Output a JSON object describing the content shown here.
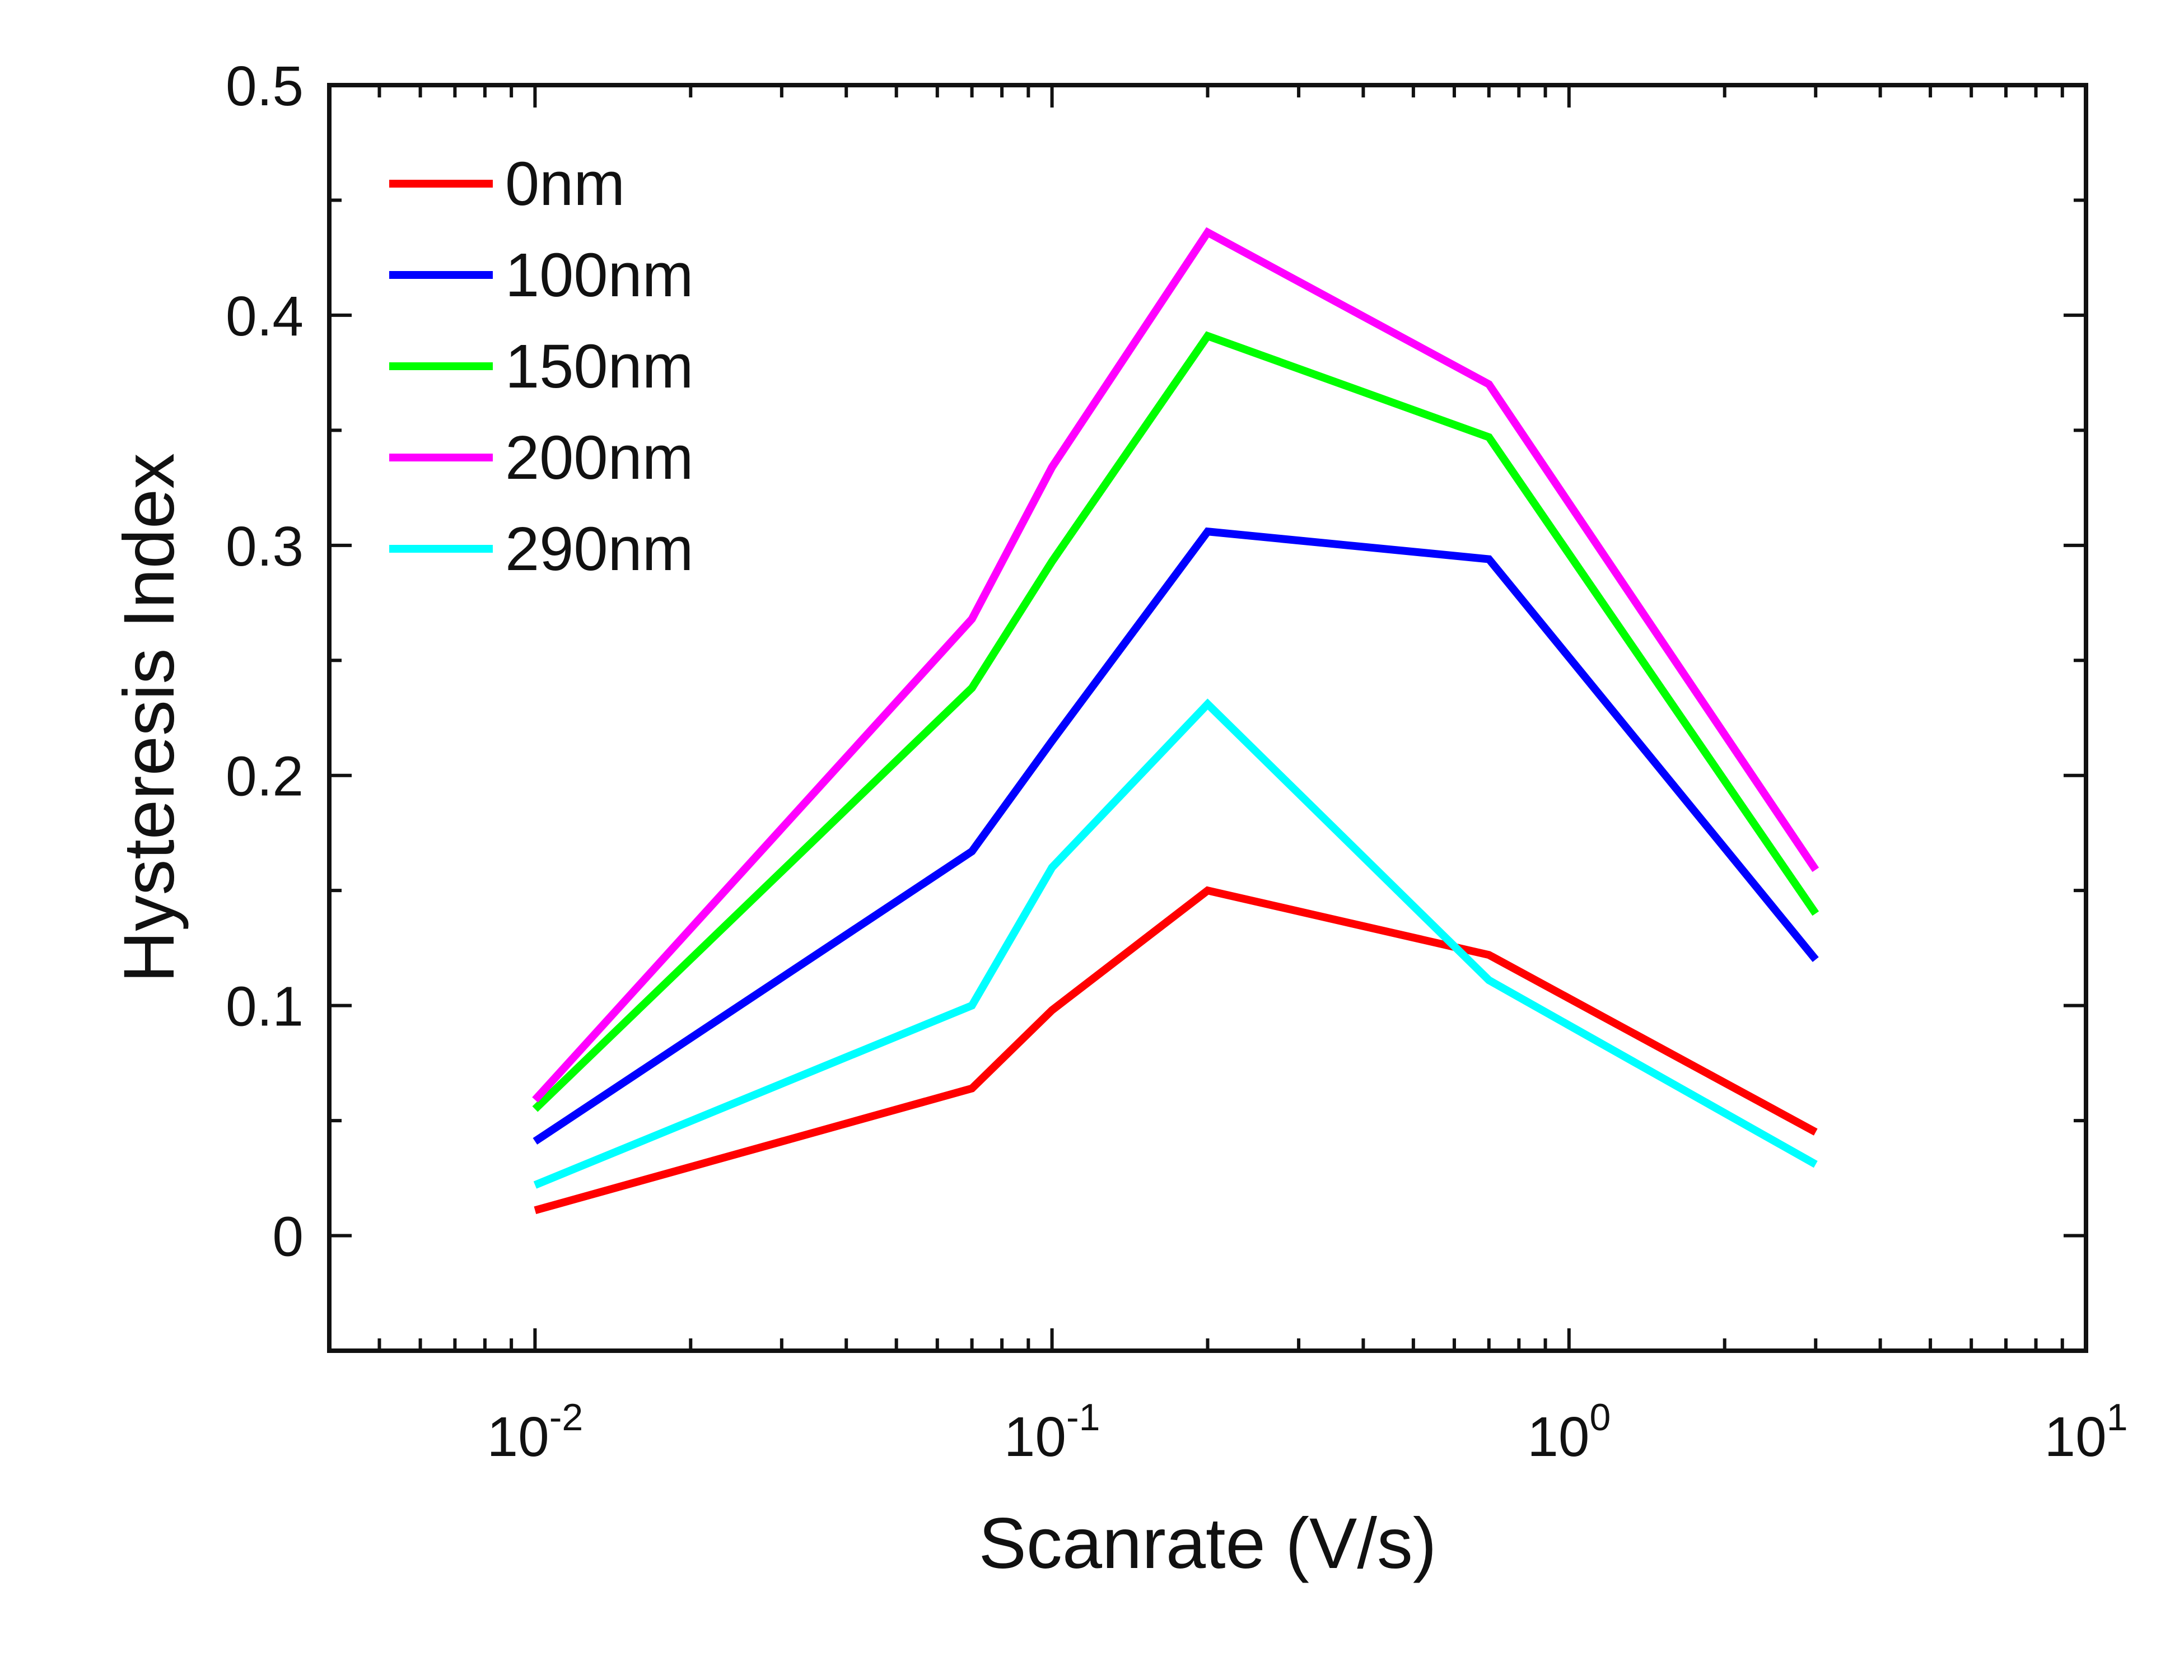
{
  "chart_data": {
    "type": "line",
    "xscale": "log",
    "xlabel": "Scanrate (V/s)",
    "ylabel": "Hysteresis Index",
    "xlim": [
      0.004,
      10
    ],
    "ylim": [
      -0.05,
      0.5
    ],
    "x": [
      0.01,
      0.07,
      0.1,
      0.2,
      0.7,
      3
    ],
    "x_ticks": [
      {
        "value": 0.01,
        "base": "10",
        "exp": "-2"
      },
      {
        "value": 0.1,
        "base": "10",
        "exp": "-1"
      },
      {
        "value": 1,
        "base": "10",
        "exp": "0"
      },
      {
        "value": 10,
        "base": "10",
        "exp": "1"
      }
    ],
    "y_ticks": [
      {
        "value": 0,
        "label": "0"
      },
      {
        "value": 0.1,
        "label": "0.1"
      },
      {
        "value": 0.2,
        "label": "0.2"
      },
      {
        "value": 0.3,
        "label": "0.3"
      },
      {
        "value": 0.4,
        "label": "0.4"
      },
      {
        "value": 0.5,
        "label": "0.5"
      }
    ],
    "legend_position": "top-left",
    "series": [
      {
        "name": "0nm",
        "color": "#ff0000",
        "values": [
          0.011,
          0.064,
          0.098,
          0.15,
          0.122,
          0.045
        ]
      },
      {
        "name": "100nm",
        "color": "#0000ff",
        "values": [
          0.041,
          0.167,
          0.215,
          0.306,
          0.294,
          0.12
        ]
      },
      {
        "name": "150nm",
        "color": "#00ff00",
        "values": [
          0.055,
          0.238,
          0.293,
          0.391,
          0.347,
          0.14
        ]
      },
      {
        "name": "200nm",
        "color": "#ff00ff",
        "values": [
          0.059,
          0.268,
          0.334,
          0.436,
          0.37,
          0.159
        ]
      },
      {
        "name": "290nm",
        "color": "#00ffff",
        "values": [
          0.022,
          0.1,
          0.16,
          0.231,
          0.111,
          0.031
        ]
      }
    ]
  }
}
